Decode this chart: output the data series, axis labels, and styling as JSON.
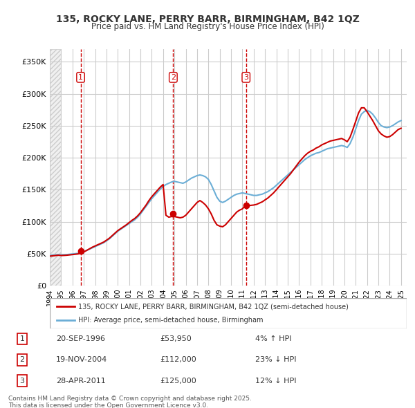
{
  "title_line1": "135, ROCKY LANE, PERRY BARR, BIRMINGHAM, B42 1QZ",
  "title_line2": "Price paid vs. HM Land Registry's House Price Index (HPI)",
  "ylabel": "",
  "background_color": "#ffffff",
  "plot_bg_color": "#ffffff",
  "hatch_color": "#e8e8e8",
  "grid_color": "#cccccc",
  "ytick_labels": [
    "£0",
    "£50K",
    "£100K",
    "£150K",
    "£200K",
    "£250K",
    "£300K",
    "£350K"
  ],
  "ytick_values": [
    0,
    50000,
    100000,
    150000,
    200000,
    250000,
    300000,
    350000
  ],
  "ylim": [
    0,
    370000
  ],
  "xlim_start": 1994.0,
  "xlim_end": 2025.5,
  "xtick_years": [
    1994,
    1995,
    1996,
    1997,
    1998,
    1999,
    2000,
    2001,
    2002,
    2003,
    2004,
    2005,
    2006,
    2007,
    2008,
    2009,
    2010,
    2011,
    2012,
    2013,
    2014,
    2015,
    2016,
    2017,
    2018,
    2019,
    2020,
    2021,
    2022,
    2023,
    2024,
    2025
  ],
  "hpi_line_color": "#6baed6",
  "price_line_color": "#cc0000",
  "sale_marker_color": "#cc0000",
  "vline_color": "#cc0000",
  "purchases": [
    {
      "date_num": 1996.72,
      "price": 53950,
      "label": "1"
    },
    {
      "date_num": 2004.89,
      "price": 112000,
      "label": "2"
    },
    {
      "date_num": 2011.32,
      "price": 125000,
      "label": "3"
    }
  ],
  "legend_entry1": "135, ROCKY LANE, PERRY BARR, BIRMINGHAM, B42 1QZ (semi-detached house)",
  "legend_entry2": "HPI: Average price, semi-detached house, Birmingham",
  "table_rows": [
    {
      "num": "1",
      "date": "20-SEP-1996",
      "price": "£53,950",
      "hpi": "4% ↑ HPI"
    },
    {
      "num": "2",
      "date": "19-NOV-2004",
      "price": "£112,000",
      "hpi": "23% ↓ HPI"
    },
    {
      "num": "3",
      "date": "28-APR-2011",
      "price": "£125,000",
      "hpi": "12% ↓ HPI"
    }
  ],
  "footer_text": "Contains HM Land Registry data © Crown copyright and database right 2025.\nThis data is licensed under the Open Government Licence v3.0.",
  "hpi_data": {
    "years": [
      1994.0,
      1994.25,
      1994.5,
      1994.75,
      1995.0,
      1995.25,
      1995.5,
      1995.75,
      1996.0,
      1996.25,
      1996.5,
      1996.75,
      1997.0,
      1997.25,
      1997.5,
      1997.75,
      1998.0,
      1998.25,
      1998.5,
      1998.75,
      1999.0,
      1999.25,
      1999.5,
      1999.75,
      2000.0,
      2000.25,
      2000.5,
      2000.75,
      2001.0,
      2001.25,
      2001.5,
      2001.75,
      2002.0,
      2002.25,
      2002.5,
      2002.75,
      2003.0,
      2003.25,
      2003.5,
      2003.75,
      2004.0,
      2004.25,
      2004.5,
      2004.75,
      2005.0,
      2005.25,
      2005.5,
      2005.75,
      2006.0,
      2006.25,
      2006.5,
      2006.75,
      2007.0,
      2007.25,
      2007.5,
      2007.75,
      2008.0,
      2008.25,
      2008.5,
      2008.75,
      2009.0,
      2009.25,
      2009.5,
      2009.75,
      2010.0,
      2010.25,
      2010.5,
      2010.75,
      2011.0,
      2011.25,
      2011.5,
      2011.75,
      2012.0,
      2012.25,
      2012.5,
      2012.75,
      2013.0,
      2013.25,
      2013.5,
      2013.75,
      2014.0,
      2014.25,
      2014.5,
      2014.75,
      2015.0,
      2015.25,
      2015.5,
      2015.75,
      2016.0,
      2016.25,
      2016.5,
      2016.75,
      2017.0,
      2017.25,
      2017.5,
      2017.75,
      2018.0,
      2018.25,
      2018.5,
      2018.75,
      2019.0,
      2019.25,
      2019.5,
      2019.75,
      2020.0,
      2020.25,
      2020.5,
      2020.75,
      2021.0,
      2021.25,
      2021.5,
      2021.75,
      2022.0,
      2022.25,
      2022.5,
      2022.75,
      2023.0,
      2023.25,
      2023.5,
      2023.75,
      2024.0,
      2024.25,
      2024.5,
      2024.75,
      2025.0
    ],
    "values": [
      47000,
      47500,
      48000,
      48500,
      48000,
      48200,
      48500,
      49000,
      49500,
      50000,
      50500,
      51500,
      53000,
      55000,
      57000,
      59000,
      61000,
      63000,
      65000,
      67000,
      70000,
      73000,
      77000,
      81000,
      85000,
      88000,
      91000,
      94000,
      97000,
      100000,
      103000,
      107000,
      112000,
      118000,
      124000,
      130000,
      136000,
      141000,
      146000,
      151000,
      155000,
      158000,
      160000,
      162000,
      163000,
      162000,
      161000,
      160000,
      162000,
      165000,
      168000,
      170000,
      172000,
      173000,
      172000,
      170000,
      166000,
      158000,
      148000,
      138000,
      132000,
      130000,
      132000,
      135000,
      138000,
      141000,
      143000,
      144000,
      145000,
      144000,
      143000,
      142000,
      141000,
      141000,
      142000,
      143000,
      145000,
      147000,
      150000,
      153000,
      157000,
      161000,
      165000,
      169000,
      173000,
      177000,
      181000,
      185000,
      189000,
      193000,
      197000,
      200000,
      203000,
      205000,
      207000,
      208000,
      210000,
      212000,
      214000,
      215000,
      216000,
      217000,
      218000,
      219000,
      218000,
      216000,
      222000,
      232000,
      245000,
      258000,
      268000,
      272000,
      274000,
      272000,
      268000,
      262000,
      255000,
      250000,
      248000,
      247000,
      248000,
      250000,
      253000,
      256000,
      258000
    ]
  },
  "price_paid_data": {
    "years": [
      1994.0,
      1994.25,
      1994.5,
      1994.75,
      1995.0,
      1995.25,
      1995.5,
      1995.75,
      1996.0,
      1996.25,
      1996.5,
      1996.75,
      1997.0,
      1997.25,
      1997.5,
      1997.75,
      1998.0,
      1998.25,
      1998.5,
      1998.75,
      1999.0,
      1999.25,
      1999.5,
      1999.75,
      2000.0,
      2000.25,
      2000.5,
      2000.75,
      2001.0,
      2001.25,
      2001.5,
      2001.75,
      2002.0,
      2002.25,
      2002.5,
      2002.75,
      2003.0,
      2003.25,
      2003.5,
      2003.75,
      2004.0,
      2004.25,
      2004.5,
      2004.75,
      2005.0,
      2005.25,
      2005.5,
      2005.75,
      2006.0,
      2006.25,
      2006.5,
      2006.75,
      2007.0,
      2007.25,
      2007.5,
      2007.75,
      2008.0,
      2008.25,
      2008.5,
      2008.75,
      2009.0,
      2009.25,
      2009.5,
      2009.75,
      2010.0,
      2010.25,
      2010.5,
      2010.75,
      2011.0,
      2011.25,
      2011.5,
      2011.75,
      2012.0,
      2012.25,
      2012.5,
      2012.75,
      2013.0,
      2013.25,
      2013.5,
      2013.75,
      2014.0,
      2014.25,
      2014.5,
      2014.75,
      2015.0,
      2015.25,
      2015.5,
      2015.75,
      2016.0,
      2016.25,
      2016.5,
      2016.75,
      2017.0,
      2017.25,
      2017.5,
      2017.75,
      2018.0,
      2018.25,
      2018.5,
      2018.75,
      2019.0,
      2019.25,
      2019.5,
      2019.75,
      2020.0,
      2020.25,
      2020.5,
      2020.75,
      2021.0,
      2021.25,
      2021.5,
      2021.75,
      2022.0,
      2022.25,
      2022.5,
      2022.75,
      2023.0,
      2023.25,
      2023.5,
      2023.75,
      2024.0,
      2024.25,
      2024.5,
      2024.75,
      2025.0
    ],
    "values": [
      46000,
      46500,
      47000,
      47500,
      47000,
      47200,
      47500,
      48000,
      48500,
      49000,
      49500,
      51000,
      52500,
      55000,
      57500,
      60000,
      62000,
      64000,
      66000,
      68000,
      71000,
      74000,
      78000,
      82000,
      86000,
      89000,
      92000,
      95000,
      98500,
      102000,
      105000,
      109000,
      114000,
      120000,
      126000,
      133000,
      139000,
      144000,
      149000,
      154000,
      158000,
      110000,
      107000,
      108000,
      108000,
      107000,
      106000,
      107000,
      110000,
      115000,
      120000,
      125000,
      130000,
      133000,
      130000,
      126000,
      120000,
      112000,
      102000,
      95000,
      93000,
      92000,
      95000,
      100000,
      105000,
      110000,
      115000,
      118000,
      120000,
      125000,
      125000,
      125500,
      126000,
      127000,
      129000,
      131000,
      134000,
      137000,
      141000,
      145000,
      150000,
      155000,
      160000,
      165000,
      170000,
      175000,
      181000,
      187000,
      193000,
      198000,
      203000,
      207000,
      210000,
      212000,
      215000,
      217000,
      220000,
      222000,
      224000,
      226000,
      227000,
      228000,
      229000,
      230000,
      228000,
      225000,
      232000,
      244000,
      257000,
      270000,
      278000,
      278000,
      272000,
      265000,
      258000,
      250000,
      242000,
      237000,
      234000,
      232000,
      233000,
      236000,
      240000,
      244000,
      246000
    ]
  }
}
